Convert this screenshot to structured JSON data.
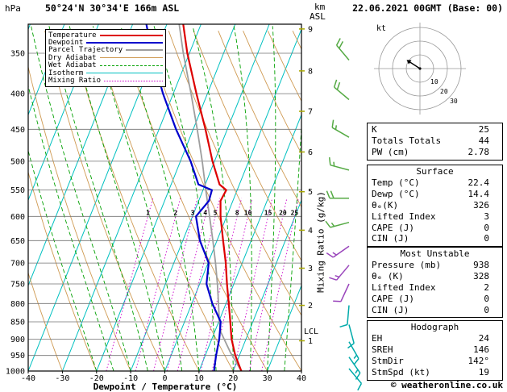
{
  "colors": {
    "temperature": "#dd0000",
    "dewpoint": "#0000cc",
    "parcel": "#9e9e9e",
    "dry_adiabat": "#cf9a52",
    "wet_adiabat": "#00a000",
    "isotherm": "#00c0c0",
    "mixing_ratio": "#cc00cc",
    "grid": "#707070",
    "barb_upper": "#55aa44",
    "barb_mid": "#9944bb",
    "barb_lower": "#00aaaa"
  },
  "header": {
    "pressure_unit": "hPa",
    "station": "50°24'N 30°34'E 166m ASL",
    "km_unit": "km",
    "asl_unit": "ASL",
    "datetime": "22.06.2021 00GMT (Base: 00)"
  },
  "legend": {
    "items": [
      {
        "label": "Temperature",
        "color": "#dd0000",
        "style": "solid",
        "weight": 2
      },
      {
        "label": "Dewpoint",
        "color": "#0000cc",
        "style": "solid",
        "weight": 2
      },
      {
        "label": "Parcel Trajectory",
        "color": "#9e9e9e",
        "style": "solid",
        "weight": 2
      },
      {
        "label": "Dry Adiabat",
        "color": "#cf9a52",
        "style": "solid",
        "weight": 1
      },
      {
        "label": "Wet Adiabat",
        "color": "#00a000",
        "style": "dashed",
        "weight": 1
      },
      {
        "label": "Isotherm",
        "color": "#00c0c0",
        "style": "solid",
        "weight": 1
      },
      {
        "label": "Mixing Ratio",
        "color": "#cc00cc",
        "style": "dotted",
        "weight": 1
      }
    ]
  },
  "axes": {
    "pressure_ticks": [
      350,
      400,
      450,
      500,
      550,
      600,
      650,
      700,
      750,
      800,
      850,
      900,
      950,
      1000
    ],
    "temp_ticks": [
      -40,
      -30,
      -20,
      -10,
      0,
      10,
      20,
      30,
      40
    ],
    "x_label": "Dewpoint / Temperature (°C)",
    "km_ticks": [
      {
        "km": 1,
        "p": 905
      },
      {
        "km": 2,
        "p": 805
      },
      {
        "km": 3,
        "p": 712
      },
      {
        "km": 4,
        "p": 628
      },
      {
        "km": 5,
        "p": 553
      },
      {
        "km": 6,
        "p": 485
      },
      {
        "km": 7,
        "p": 424
      },
      {
        "km": 8,
        "p": 371
      },
      {
        "km": 9,
        "p": 323
      }
    ],
    "lcl": {
      "label": "LCL",
      "p": 880
    },
    "mixing_label": "Mixing Ratio (g/kg)",
    "mixing_values": [
      1,
      2,
      3,
      4,
      5,
      8,
      10,
      15,
      20,
      25
    ]
  },
  "chart_data": {
    "type": "line",
    "title": "Skew-T log-P sounding 50°24'N 30°34'E 166m ASL 22.06.2021 00GMT (Base: 00)",
    "x_axis_label": "Dewpoint / Temperature (°C)",
    "y_axis_label": "Pressure (hPa)",
    "x_range": [
      -40,
      40
    ],
    "pressure_range": [
      1000,
      318
    ],
    "skew_note": "isotherms slant up-right, logarithmic pressure axis",
    "series": [
      {
        "name": "Temperature",
        "unit": "°C",
        "pressure": [
          1000,
          950,
          900,
          850,
          800,
          750,
          700,
          650,
          600,
          570,
          550,
          540,
          500,
          450,
          400,
          350,
          318
        ],
        "values": [
          22.4,
          18.8,
          15.8,
          13.4,
          10.8,
          8.0,
          5.2,
          1.8,
          -1.8,
          -3.6,
          -3.2,
          -5.8,
          -10.6,
          -16.4,
          -23.2,
          -30.6,
          -35.2
        ]
      },
      {
        "name": "Dewpoint",
        "unit": "°C",
        "pressure": [
          1000,
          950,
          900,
          850,
          800,
          750,
          700,
          650,
          600,
          570,
          550,
          540,
          500,
          450,
          400,
          350,
          318
        ],
        "values": [
          14.4,
          13.2,
          12.2,
          10.6,
          6.0,
          2.0,
          0.2,
          -5.0,
          -9.0,
          -7.0,
          -7.4,
          -12.0,
          -17.0,
          -25.0,
          -33.0,
          -41.0,
          -46.0
        ]
      },
      {
        "name": "Parcel Trajectory",
        "unit": "°C",
        "pressure": [
          1000,
          940,
          880,
          850,
          800,
          750,
          700,
          650,
          600,
          550,
          500,
          450,
          400,
          350,
          318
        ],
        "values": [
          22.4,
          17.0,
          11.9,
          10.2,
          7.8,
          5.2,
          2.2,
          -1.2,
          -5.0,
          -9.2,
          -13.6,
          -18.8,
          -24.8,
          -31.8,
          -36.4
        ]
      }
    ],
    "wind_barbs": [
      {
        "p": 358,
        "dir": 320,
        "spd": 20,
        "band": "upper"
      },
      {
        "p": 408,
        "dir": 310,
        "spd": 20,
        "band": "upper"
      },
      {
        "p": 462,
        "dir": 300,
        "spd": 15,
        "band": "upper"
      },
      {
        "p": 515,
        "dir": 285,
        "spd": 15,
        "band": "upper"
      },
      {
        "p": 565,
        "dir": 270,
        "spd": 20,
        "band": "upper"
      },
      {
        "p": 612,
        "dir": 255,
        "spd": 15,
        "band": "upper"
      },
      {
        "p": 662,
        "dir": 235,
        "spd": 15,
        "band": "mid"
      },
      {
        "p": 705,
        "dir": 220,
        "spd": 15,
        "band": "mid"
      },
      {
        "p": 750,
        "dir": 205,
        "spd": 10,
        "band": "mid"
      },
      {
        "p": 805,
        "dir": 185,
        "spd": 10,
        "band": "lower"
      },
      {
        "p": 858,
        "dir": 165,
        "spd": 10,
        "band": "lower"
      },
      {
        "p": 908,
        "dir": 150,
        "spd": 15,
        "band": "lower"
      },
      {
        "p": 955,
        "dir": 145,
        "spd": 15,
        "band": "lower"
      },
      {
        "p": 992,
        "dir": 140,
        "spd": 10,
        "band": "lower"
      }
    ]
  },
  "hodograph": {
    "unit": "kt",
    "ring_labels": [
      10,
      20,
      30
    ],
    "vector": {
      "dx": -14,
      "dy": -9
    }
  },
  "tables": {
    "indices": {
      "rows": [
        {
          "label": "K",
          "value": "25"
        },
        {
          "label": "Totals Totals",
          "value": "44"
        },
        {
          "label": "PW (cm)",
          "value": "2.78"
        }
      ]
    },
    "surface": {
      "title": "Surface",
      "rows": [
        {
          "label": "Temp (°C)",
          "value": "22.4"
        },
        {
          "label": "Dewp (°C)",
          "value": "14.4"
        },
        {
          "label": "θₑ(K)",
          "value": "326"
        },
        {
          "label": "Lifted Index",
          "value": "3"
        },
        {
          "label": "CAPE (J)",
          "value": "0"
        },
        {
          "label": "CIN (J)",
          "value": "0"
        }
      ]
    },
    "most_unstable": {
      "title": "Most Unstable",
      "rows": [
        {
          "label": "Pressure (mb)",
          "value": "938"
        },
        {
          "label": "θₑ (K)",
          "value": "328"
        },
        {
          "label": "Lifted Index",
          "value": "2"
        },
        {
          "label": "CAPE (J)",
          "value": "0"
        },
        {
          "label": "CIN (J)",
          "value": "0"
        }
      ]
    },
    "hodograph": {
      "title": "Hodograph",
      "rows": [
        {
          "label": "EH",
          "value": "24"
        },
        {
          "label": "SREH",
          "value": "146"
        },
        {
          "label": "StmDir",
          "value": "142°"
        },
        {
          "label": "StmSpd (kt)",
          "value": "19"
        }
      ]
    }
  },
  "footer": {
    "copyright": "© weatheronline.co.uk"
  }
}
